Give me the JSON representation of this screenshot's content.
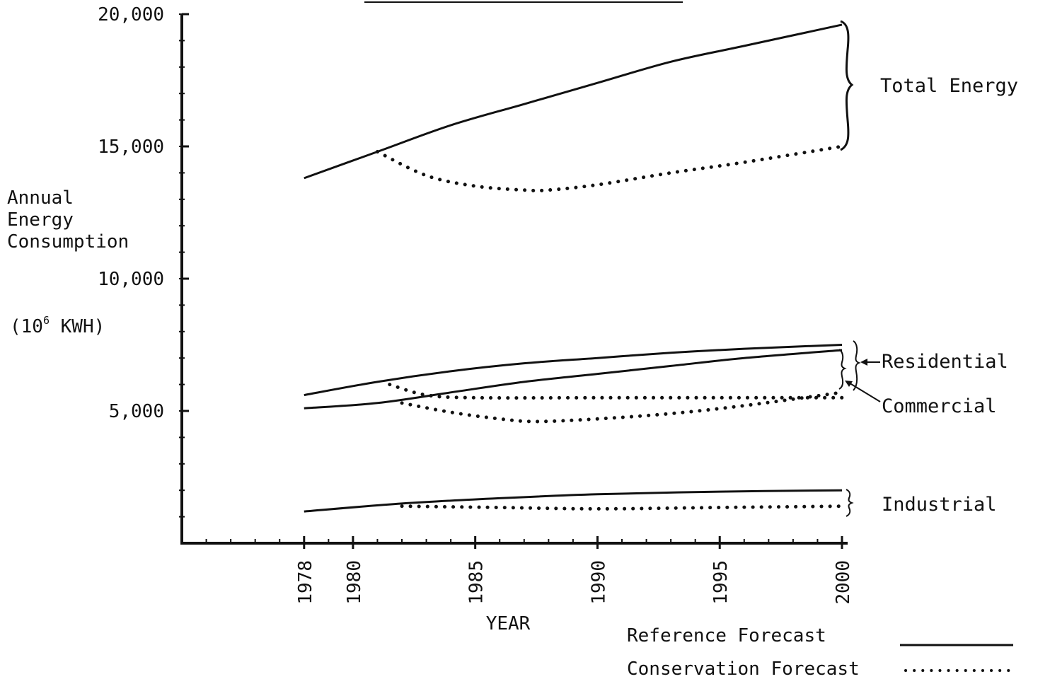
{
  "chart_data": {
    "type": "line",
    "ylabel_lines": [
      "Annual",
      "Energy",
      "Consumption"
    ],
    "yunit_prefix": "(10",
    "yunit_exp": "6",
    "yunit_suffix": " KWH)",
    "xlabel": "YEAR",
    "xlim": [
      1973,
      2000
    ],
    "ylim": [
      0,
      20000
    ],
    "y_ticks": [
      {
        "value": 5000,
        "label": "5,000"
      },
      {
        "value": 10000,
        "label": "10,000"
      },
      {
        "value": 15000,
        "label": "15,000"
      },
      {
        "value": 20000,
        "label": "20,000"
      }
    ],
    "y_minor_step": 1000,
    "x_ticks": [
      {
        "value": 1978,
        "label": "1978"
      },
      {
        "value": 1980,
        "label": "1980"
      },
      {
        "value": 1985,
        "label": "1985"
      },
      {
        "value": 1990,
        "label": "1990"
      },
      {
        "value": 1995,
        "label": "1995"
      },
      {
        "value": 2000,
        "label": "2000"
      }
    ],
    "x_minor_step": 1,
    "group_labels": {
      "total": "Total Energy",
      "residential": "Residential",
      "commercial": "Commercial",
      "industrial": "Industrial"
    },
    "legend": {
      "reference": "Reference Forecast",
      "conservation": "Conservation Forecast"
    },
    "series": [
      {
        "group": "total",
        "style": "reference",
        "x": [
          1978,
          1981,
          1984,
          1987,
          1990,
          1993,
          1996,
          2000
        ],
        "y": [
          13800,
          14800,
          15800,
          16600,
          17400,
          18200,
          18800,
          19600
        ]
      },
      {
        "group": "total",
        "style": "conservation",
        "x": [
          1981,
          1983,
          1985,
          1987,
          1988,
          1990,
          1993,
          1996,
          2000
        ],
        "y": [
          14800,
          13900,
          13500,
          13350,
          13350,
          13550,
          14000,
          14400,
          15000
        ]
      },
      {
        "group": "residential",
        "style": "reference",
        "x": [
          1978,
          1981,
          1984,
          1987,
          1990,
          1993,
          1996,
          2000
        ],
        "y": [
          5600,
          6100,
          6500,
          6800,
          7000,
          7200,
          7350,
          7500
        ]
      },
      {
        "group": "commercial",
        "style": "reference",
        "x": [
          1978,
          1981,
          1984,
          1987,
          1990,
          1993,
          1996,
          2000
        ],
        "y": [
          5100,
          5300,
          5700,
          6100,
          6400,
          6700,
          7000,
          7300
        ]
      },
      {
        "group": "residential",
        "style": "conservation",
        "x": [
          1981.5,
          1983,
          1985,
          1990,
          1995,
          2000
        ],
        "y": [
          6000,
          5600,
          5500,
          5500,
          5500,
          5500
        ]
      },
      {
        "group": "commercial",
        "style": "conservation",
        "x": [
          1982,
          1984,
          1986,
          1987.5,
          1990,
          1993,
          1996,
          2000
        ],
        "y": [
          5300,
          4950,
          4700,
          4600,
          4700,
          4900,
          5200,
          5700
        ]
      },
      {
        "group": "industrial",
        "style": "reference",
        "x": [
          1978,
          1982,
          1986,
          1990,
          1995,
          2000
        ],
        "y": [
          1200,
          1500,
          1700,
          1850,
          1950,
          2000
        ]
      },
      {
        "group": "industrial",
        "style": "conservation",
        "x": [
          1982,
          1986,
          1990,
          1995,
          2000
        ],
        "y": [
          1400,
          1350,
          1300,
          1350,
          1400
        ]
      }
    ]
  }
}
